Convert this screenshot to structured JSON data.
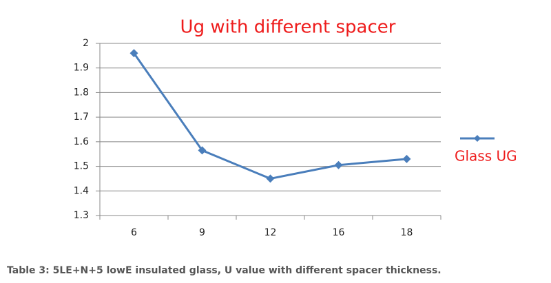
{
  "chart_data": {
    "type": "line",
    "title": "Ug with different spacer",
    "categories": [
      "6",
      "9",
      "12",
      "16",
      "18"
    ],
    "series": [
      {
        "name": "Glass UG",
        "color": "#4a7ebb",
        "values": [
          1.96,
          1.565,
          1.45,
          1.505,
          1.53
        ]
      }
    ],
    "ylim": [
      1.3,
      2
    ],
    "yticks": [
      1.3,
      1.4,
      1.5,
      1.6,
      1.7,
      1.8,
      1.9,
      2
    ],
    "grid": true,
    "legend": "right"
  },
  "caption": "Table 3: 5LE+N+5 lowE insulated glass, U value with different spacer thickness."
}
